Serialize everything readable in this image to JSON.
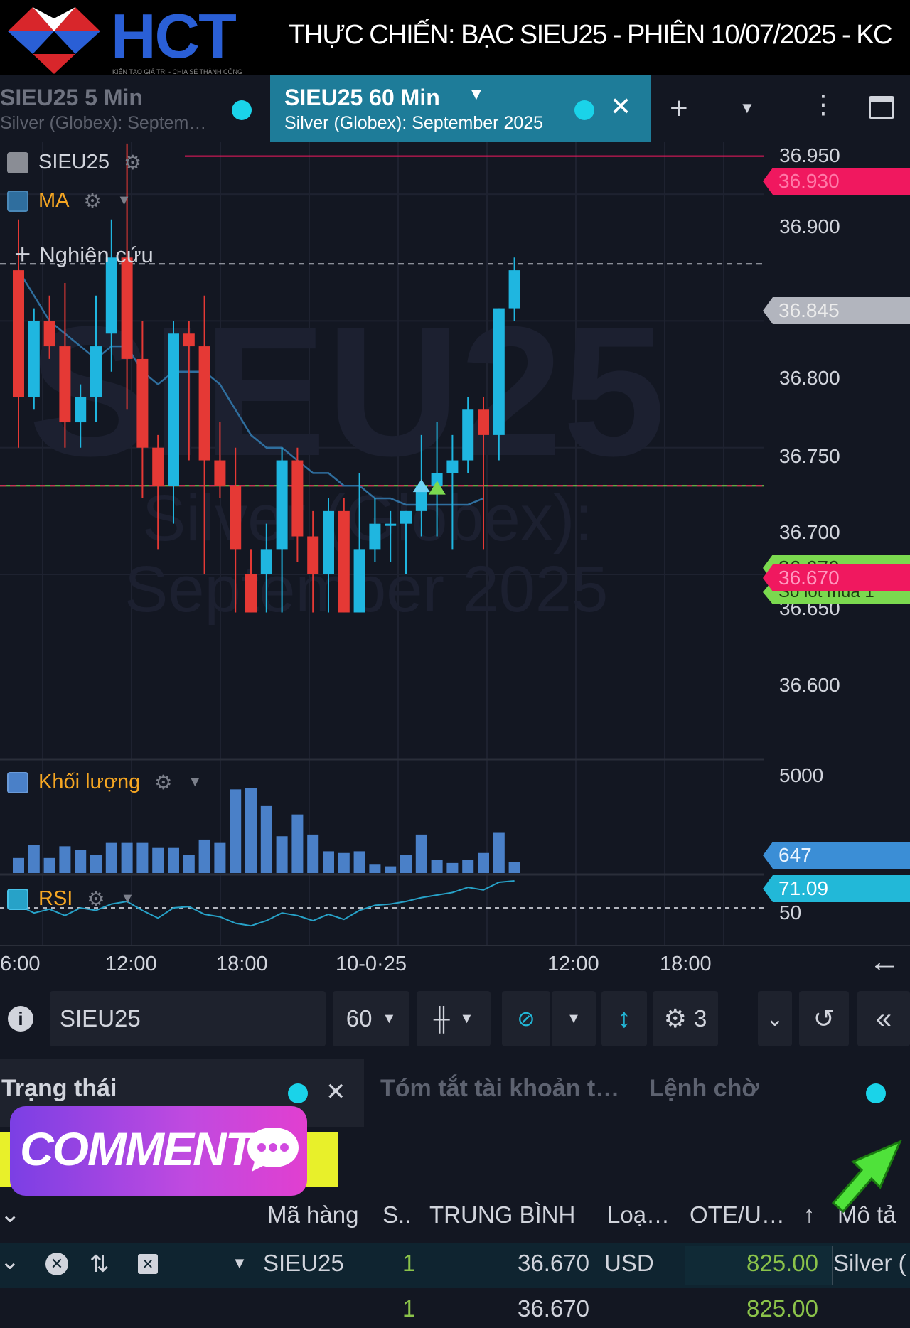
{
  "banner": {
    "logo_text": "HCT",
    "logo_tagline": "KIẾN TẠO GIÁ TRỊ - CHIA SẺ THÀNH CÔNG",
    "title": "THỰC CHIẾN: BẠC SIEU25 - PHIÊN 10/07/2025 - KC"
  },
  "tabs": [
    {
      "title": "SIEU25 5 Min",
      "subtitle": "Silver (Globex): Septem…"
    },
    {
      "title": "SIEU25 60 Min",
      "subtitle": "Silver (Globex): September 2025"
    }
  ],
  "legend": {
    "symbol": "SIEU25",
    "ma": "MA",
    "study": "Nghiên cứu",
    "volume": "Khối lượng",
    "rsi": "RSI"
  },
  "watermark": {
    "symbol": "SIEU25",
    "name": "Silver (Globex):",
    "month": "September 2025"
  },
  "price_axis": [
    "36.950",
    "36.900",
    "36.800",
    "36.750",
    "36.700",
    "36.650",
    "36.600"
  ],
  "price_badges": {
    "high_line": "36.930",
    "last": "36.845",
    "entry_green": "36.670",
    "entry_red": "36.670",
    "entry_note": "Số lot mua 1"
  },
  "volume_axis": "5000",
  "volume_badge": "647",
  "rsi_axis": "50",
  "rsi_badge": "71.09",
  "time_axis": [
    "6:00",
    "12:00",
    "18:00",
    "10-0·25",
    "12:00",
    "18:00"
  ],
  "colors": {
    "up": "#1fb6e0",
    "down": "#e53935",
    "ma": "#2f6e9e",
    "volume": "#4a80c8",
    "rsi": "#27a2c8",
    "badge_red": "#f0185f",
    "badge_green": "#7bd94f",
    "badge_blue": "#3b8ed6",
    "badge_cyan": "#22b8d8"
  },
  "chart_data": {
    "type": "candlestick",
    "symbol": "SIEU25",
    "timeframe": "60 Min",
    "ylim": [
      36.57,
      36.96
    ],
    "candles": [
      [
        36.84,
        36.88,
        36.7,
        36.74
      ],
      [
        36.74,
        36.81,
        36.73,
        36.8
      ],
      [
        36.8,
        36.82,
        36.77,
        36.78
      ],
      [
        36.78,
        36.83,
        36.7,
        36.72
      ],
      [
        36.72,
        36.75,
        36.7,
        36.74
      ],
      [
        36.74,
        36.82,
        36.72,
        36.78
      ],
      [
        36.79,
        36.88,
        36.76,
        36.85
      ],
      [
        36.85,
        36.94,
        36.73,
        36.77
      ],
      [
        36.77,
        36.8,
        36.66,
        36.7
      ],
      [
        36.7,
        36.71,
        36.62,
        36.67
      ],
      [
        36.67,
        36.8,
        36.64,
        36.79
      ],
      [
        36.79,
        36.8,
        36.69,
        36.78
      ],
      [
        36.78,
        36.82,
        36.6,
        36.69
      ],
      [
        36.69,
        36.72,
        36.66,
        36.67
      ],
      [
        36.67,
        36.7,
        36.57,
        36.62
      ],
      [
        36.6,
        36.62,
        36.57,
        36.57
      ],
      [
        36.6,
        36.64,
        36.57,
        36.62
      ],
      [
        36.62,
        36.7,
        36.57,
        36.69
      ],
      [
        36.69,
        36.7,
        36.61,
        36.63
      ],
      [
        36.63,
        36.65,
        36.57,
        36.6
      ],
      [
        36.6,
        36.66,
        36.57,
        36.65
      ],
      [
        36.65,
        36.66,
        36.57,
        36.57
      ],
      [
        36.57,
        36.68,
        36.57,
        36.62
      ],
      [
        36.62,
        36.66,
        36.61,
        36.64
      ],
      [
        36.64,
        36.65,
        36.61,
        36.64
      ],
      [
        36.64,
        36.65,
        36.6,
        36.65
      ],
      [
        36.65,
        36.71,
        36.63,
        36.67
      ],
      [
        36.67,
        36.72,
        36.63,
        36.68
      ],
      [
        36.68,
        36.71,
        36.62,
        36.69
      ],
      [
        36.69,
        36.74,
        36.68,
        36.73
      ],
      [
        36.73,
        36.74,
        36.62,
        36.71
      ],
      [
        36.71,
        36.81,
        36.69,
        36.81
      ],
      [
        36.81,
        36.85,
        36.8,
        36.84
      ]
    ],
    "volume": [
      900,
      1700,
      900,
      1600,
      1400,
      1100,
      1800,
      1800,
      1800,
      1500,
      1500,
      1100,
      2000,
      1800,
      5000,
      5100,
      4000,
      2200,
      3500,
      2300,
      1300,
      1200,
      1300,
      500,
      400,
      1100,
      2300,
      800,
      600,
      800,
      1200,
      2400,
      647
    ],
    "rsi_last": 71.09,
    "horizontal_lines": [
      36.93,
      36.845,
      36.67
    ]
  },
  "toolbar": {
    "symbol": "SIEU25",
    "interval": "60",
    "studies_count": "3"
  },
  "panel": {
    "tabs": [
      "Trạng thái",
      "Tóm tắt tài khoản t…",
      "Lệnh chờ"
    ],
    "comment_label": "COMMENT",
    "columns": [
      "Mã hàng",
      "S..",
      "TRUNG BÌNH",
      "Loạ…",
      "OTE/U…",
      "Mô tả"
    ],
    "rows": [
      {
        "symbol": "SIEU25",
        "qty": "1",
        "avg": "36.670",
        "type": "USD",
        "ote": "825.00",
        "desc": "Silver ("
      },
      {
        "symbol": "",
        "qty": "1",
        "avg": "36.670",
        "type": "",
        "ote": "825.00",
        "desc": ""
      }
    ]
  }
}
